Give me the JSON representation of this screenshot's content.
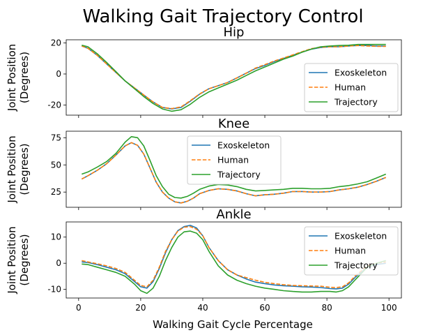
{
  "figure": {
    "title": "Walking Gait Trajectory Control",
    "xlabel": "Walking Gait Cycle Percentage"
  },
  "chart_data": [
    {
      "type": "line",
      "title": "Hip",
      "ylabel": [
        "Joint Position",
        "(Degrees)"
      ],
      "xlim": [
        -4,
        104
      ],
      "ylim": [
        -26.5,
        22
      ],
      "yticks": [
        -20,
        0,
        20
      ],
      "xticks": [
        0,
        20,
        40,
        60,
        80,
        100
      ],
      "legend": "lower-right",
      "x": [
        1,
        3,
        6,
        9,
        12,
        15,
        18,
        21,
        24,
        27,
        30,
        33,
        36,
        39,
        42,
        45,
        48,
        51,
        54,
        57,
        60,
        63,
        66,
        69,
        72,
        75,
        78,
        81,
        84,
        87,
        90,
        93,
        96,
        99
      ],
      "series": [
        {
          "name": "Exoskeleton",
          "color": "#1f77b4",
          "dash": "solid",
          "values": [
            18,
            16.5,
            12,
            6.5,
            1,
            -4.5,
            -9,
            -13.5,
            -18,
            -21.5,
            -22.5,
            -21.5,
            -17.5,
            -13,
            -9.5,
            -7.5,
            -5.5,
            -2.5,
            0.5,
            3.5,
            5.5,
            8,
            10,
            12,
            14,
            16,
            17,
            17.5,
            17.5,
            18,
            18.3,
            18.3,
            18,
            18
          ]
        },
        {
          "name": "Human",
          "color": "#ff7f0e",
          "dash": "dashed",
          "values": [
            18,
            16.5,
            12,
            6.5,
            1,
            -4.5,
            -9,
            -13.5,
            -18,
            -21.5,
            -22.3,
            -21.2,
            -17.2,
            -12.8,
            -9.5,
            -7.5,
            -5.5,
            -2.5,
            0.5,
            3.8,
            6,
            8.3,
            10.3,
            12.3,
            14.3,
            16.3,
            17.2,
            17.5,
            17.5,
            18,
            18.3,
            18,
            17.8,
            17.8
          ]
        },
        {
          "name": "Trajectory",
          "color": "#2ca02c",
          "dash": "solid",
          "values": [
            18.5,
            17.5,
            13,
            7.5,
            1.5,
            -4.5,
            -9.5,
            -14.5,
            -19,
            -22.5,
            -24,
            -23,
            -19.5,
            -15,
            -11.5,
            -9,
            -6.5,
            -4,
            -1,
            2,
            4.5,
            7,
            9.5,
            11.5,
            14,
            16,
            17.5,
            18,
            18.3,
            18.5,
            19,
            19,
            19,
            19
          ]
        }
      ]
    },
    {
      "type": "line",
      "title": "Knee",
      "ylabel": [
        "Joint Position",
        "(Degrees)"
      ],
      "xlim": [
        -4,
        104
      ],
      "ylim": [
        11,
        81
      ],
      "yticks": [
        25,
        50,
        75
      ],
      "xticks": [
        0,
        20,
        40,
        60,
        80,
        100
      ],
      "legend": "upper-center",
      "x": [
        1,
        3,
        6,
        9,
        12,
        15,
        17,
        19,
        21,
        23,
        25,
        27,
        29,
        31,
        33,
        35,
        37,
        39,
        42,
        45,
        48,
        51,
        54,
        57,
        60,
        63,
        66,
        69,
        72,
        75,
        78,
        81,
        84,
        87,
        90,
        93,
        96,
        99
      ],
      "series": [
        {
          "name": "Exoskeleton",
          "color": "#1f77b4",
          "dash": "solid",
          "values": [
            37,
            40,
            45,
            51,
            59,
            67.5,
            70.5,
            68,
            60,
            47,
            34,
            25,
            19.5,
            16,
            15,
            16.5,
            19.5,
            23.5,
            26.5,
            28,
            27.5,
            26,
            23.5,
            21.5,
            22.5,
            23,
            24,
            25.5,
            25.5,
            25,
            25,
            25.5,
            27,
            28,
            29.5,
            32,
            35,
            38.5
          ]
        },
        {
          "name": "Human",
          "color": "#ff7f0e",
          "dash": "dashed",
          "values": [
            37,
            40,
            45,
            51,
            59,
            67.5,
            70.5,
            68,
            60,
            47,
            34,
            25,
            19.5,
            16,
            15,
            16.5,
            19.5,
            23.5,
            26.5,
            28,
            27.5,
            26,
            23.5,
            21.5,
            22.5,
            23,
            24,
            25.5,
            25.5,
            25,
            25,
            25.5,
            27,
            28,
            29.5,
            32,
            35,
            38.5
          ]
        },
        {
          "name": "Trajectory",
          "color": "#2ca02c",
          "dash": "solid",
          "values": [
            41.5,
            43.5,
            48,
            53,
            60.5,
            71,
            76,
            75,
            67.5,
            54,
            40,
            30,
            23,
            20,
            19.5,
            21,
            24,
            27.5,
            30.5,
            32,
            31.5,
            30,
            27.5,
            26,
            26.5,
            27,
            27.5,
            28.5,
            28.5,
            28,
            28,
            28.5,
            30,
            31,
            32.5,
            34.5,
            38,
            41.5
          ]
        }
      ]
    },
    {
      "type": "line",
      "title": "Ankle",
      "ylabel": [
        "Joint Position",
        "(Degrees)"
      ],
      "xlim": [
        -4,
        104
      ],
      "ylim": [
        -13.3,
        15.8
      ],
      "yticks": [
        -10,
        0,
        10
      ],
      "xticks": [
        0,
        20,
        40,
        60,
        80,
        100
      ],
      "legend": "upper-right",
      "x": [
        1,
        3,
        6,
        9,
        12,
        15,
        18,
        20,
        22,
        24,
        26,
        28,
        30,
        32,
        34,
        36,
        38,
        40,
        42,
        45,
        48,
        51,
        54,
        57,
        60,
        63,
        66,
        69,
        72,
        75,
        78,
        81,
        83,
        85,
        87,
        89,
        91,
        93,
        96,
        99
      ],
      "series": [
        {
          "name": "Exoskeleton",
          "color": "#1f77b4",
          "dash": "solid",
          "values": [
            0.5,
            0.3,
            -0.5,
            -1.5,
            -2.5,
            -4,
            -7,
            -9,
            -9.5,
            -7,
            -2,
            4,
            9,
            12.5,
            14,
            14.5,
            13.5,
            10.5,
            6,
            1,
            -2.5,
            -4.5,
            -6,
            -7.2,
            -7.8,
            -8.3,
            -8.6,
            -8.8,
            -9,
            -9.1,
            -9.3,
            -9.7,
            -9.8,
            -9.5,
            -8,
            -5.5,
            -3.5,
            -1.5,
            -0.5,
            0
          ]
        },
        {
          "name": "Human",
          "color": "#ff7f0e",
          "dash": "dashed",
          "values": [
            1,
            0.5,
            -0.2,
            -1,
            -2,
            -3.5,
            -6.5,
            -8.5,
            -9,
            -6.5,
            -1.5,
            4.5,
            9,
            12.3,
            13.8,
            14,
            13,
            10.5,
            6,
            1,
            -2.5,
            -4.5,
            -5.5,
            -6.5,
            -7.3,
            -7.8,
            -8.2,
            -8.5,
            -8.6,
            -8.7,
            -8.8,
            -9.2,
            -9.3,
            -9,
            -7.5,
            -5,
            -3,
            -1,
            0,
            0.5
          ]
        },
        {
          "name": "Trajectory",
          "color": "#2ca02c",
          "dash": "solid",
          "values": [
            -0.3,
            -0.5,
            -1.5,
            -2.5,
            -3.5,
            -5,
            -8,
            -10.5,
            -11.5,
            -9.5,
            -5,
            1,
            6,
            10,
            12,
            12.3,
            11.5,
            9,
            4.5,
            -1,
            -4.5,
            -6.5,
            -7.8,
            -8.8,
            -9.5,
            -10,
            -10.5,
            -10.8,
            -11,
            -11,
            -10.8,
            -10.8,
            -11,
            -10.5,
            -9,
            -6.5,
            -4,
            -1.5,
            0,
            1
          ]
        }
      ]
    }
  ]
}
